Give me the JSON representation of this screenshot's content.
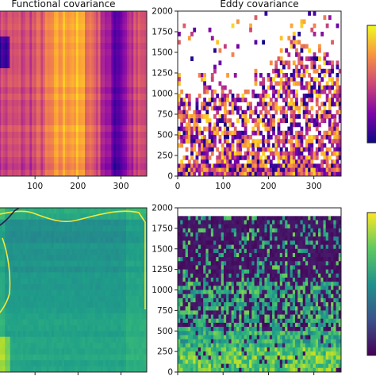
{
  "chart_data": [
    {
      "type": "heatmap",
      "title": "Functional covariance",
      "colormap": "plasma",
      "xlim": [
        0,
        360
      ],
      "ylim": [
        0,
        2000
      ],
      "xticks": [
        "100",
        "200",
        "300"
      ],
      "yticks": [],
      "grid": false
    },
    {
      "type": "heatmap",
      "title": "Eddy covariance",
      "colormap": "plasma",
      "xlim": [
        0,
        360
      ],
      "ylim": [
        0,
        2000
      ],
      "xticks": [
        "0",
        "100",
        "200",
        "300"
      ],
      "yticks": [
        "0",
        "250",
        "500",
        "750",
        "1000",
        "1250",
        "1500",
        "1750",
        "2000"
      ],
      "grid": false
    },
    {
      "type": "heatmap",
      "title": "",
      "colormap": "viridis",
      "xlim": [
        0,
        360
      ],
      "ylim": [
        0,
        2000
      ],
      "xticks": [],
      "yticks": [],
      "contour_colors": [
        "#f3e83a",
        "#2b1a4f"
      ],
      "grid": false
    },
    {
      "type": "heatmap",
      "title": "",
      "colormap": "viridis",
      "xlim": [
        0,
        360
      ],
      "ylim": [
        0,
        2000
      ],
      "xticks": [],
      "yticks": [
        "0",
        "250",
        "500",
        "750",
        "1000",
        "1250",
        "1500",
        "1750",
        "2000"
      ],
      "grid": false
    }
  ]
}
